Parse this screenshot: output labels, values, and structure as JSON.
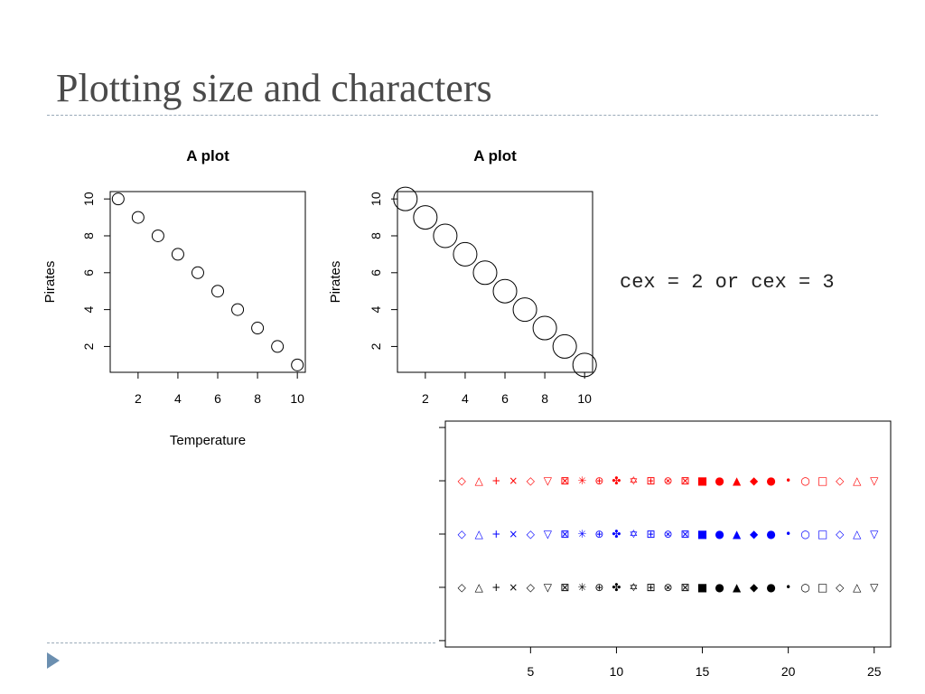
{
  "slide": {
    "title": "Plotting size and characters",
    "cex_note": "cex = 2 or cex = 3"
  },
  "chart_data": [
    {
      "type": "scatter",
      "title": "A plot",
      "xlabel": "Temperature",
      "ylabel": "Pirates",
      "x": [
        1,
        2,
        3,
        4,
        5,
        6,
        7,
        8,
        9,
        10
      ],
      "y": [
        10,
        9,
        8,
        7,
        6,
        5,
        4,
        3,
        2,
        1
      ],
      "xlim": [
        0.6,
        10.4
      ],
      "ylim": [
        0.6,
        10.4
      ],
      "xticks": [
        2,
        4,
        6,
        8,
        10
      ],
      "yticks": [
        2,
        4,
        6,
        8,
        10
      ],
      "marker": "open-circle",
      "cex": 1
    },
    {
      "type": "scatter",
      "title": "A plot",
      "xlabel": "",
      "ylabel": "Pirates",
      "x": [
        1,
        2,
        3,
        4,
        5,
        6,
        7,
        8,
        9,
        10
      ],
      "y": [
        10,
        9,
        8,
        7,
        6,
        5,
        4,
        3,
        2,
        1
      ],
      "xlim": [
        0.6,
        10.4
      ],
      "ylim": [
        0.6,
        10.4
      ],
      "xticks": [
        2,
        4,
        6,
        8,
        10
      ],
      "yticks": [
        2,
        4,
        6,
        8,
        10
      ],
      "marker": "open-circle",
      "cex": 2
    },
    {
      "type": "scatter",
      "title": "",
      "xlabel": "",
      "ylabel": "",
      "x": [
        1,
        2,
        3,
        4,
        5,
        6,
        7,
        8,
        9,
        10,
        11,
        12,
        13,
        14,
        15,
        16,
        17,
        18,
        19,
        20,
        21,
        22,
        23,
        24,
        25
      ],
      "xlim": [
        0.04,
        25.96
      ],
      "ylim": [
        -0.12,
        4.12
      ],
      "xticks": [
        5,
        10,
        15,
        20,
        25
      ],
      "yticks": [
        0,
        1,
        2,
        3,
        4
      ],
      "pch_symbols": [
        "◇",
        "△",
        "+",
        "×",
        "◇",
        "▽",
        "⊠",
        "✳",
        "⊕",
        "✤",
        "✡",
        "⊞",
        "⊗",
        "⊠",
        "■",
        "●",
        "▲",
        "◆",
        "●",
        "•",
        "○",
        "□",
        "◇",
        "△",
        "▽"
      ],
      "series": [
        {
          "y": 1,
          "color": "#000000",
          "values": [
            1,
            1,
            1,
            1,
            1,
            1,
            1,
            1,
            1,
            1,
            1,
            1,
            1,
            1,
            1,
            1,
            1,
            1,
            1,
            1,
            1,
            1,
            1,
            1,
            1
          ]
        },
        {
          "y": 2,
          "color": "#0000ff",
          "values": [
            2,
            2,
            2,
            2,
            2,
            2,
            2,
            2,
            2,
            2,
            2,
            2,
            2,
            2,
            2,
            2,
            2,
            2,
            2,
            2,
            2,
            2,
            2,
            2,
            2
          ]
        },
        {
          "y": 3,
          "color": "#ff0000",
          "values": [
            3,
            3,
            3,
            3,
            3,
            3,
            3,
            3,
            3,
            3,
            3,
            3,
            3,
            3,
            3,
            3,
            3,
            3,
            3,
            3,
            3,
            3,
            3,
            3,
            3
          ]
        }
      ]
    }
  ]
}
